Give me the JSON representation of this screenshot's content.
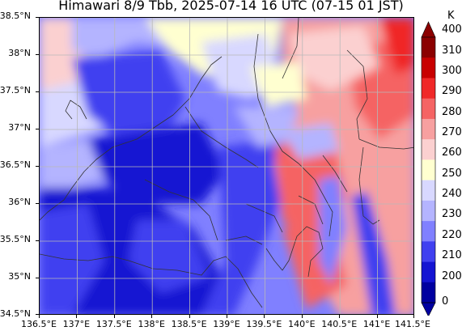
{
  "title": "Himawari 8/9 Tbb, 2025-07-14 16 UTC (07-15 01 JST)",
  "map": {
    "lon_range": [
      136.5,
      141.5
    ],
    "lat_range": [
      34.5,
      38.5
    ],
    "lat_labels": [
      "38.5°N",
      "38°N",
      "37.5°N",
      "37°N",
      "36.5°N",
      "36°N",
      "35.5°N",
      "35°N",
      "34.5°N"
    ],
    "lon_labels": [
      "136.5°E",
      "137°E",
      "137.5°E",
      "138°E",
      "138.5°E",
      "139°E",
      "139.5°E",
      "140°E",
      "140.5°E",
      "141°E",
      "141.5°E"
    ],
    "grid": true
  },
  "colorbar": {
    "unit": "K",
    "levels": [
      "400",
      "310",
      "300",
      "290",
      "280",
      "270",
      "260",
      "250",
      "240",
      "230",
      "220",
      "210",
      "200",
      "0"
    ],
    "colors": [
      "#8b0000",
      "#c80000",
      "#f02828",
      "#f56464",
      "#f7a0a0",
      "#fbd0d0",
      "#ffffd0",
      "#d8d8ff",
      "#b4b4ff",
      "#8080ff",
      "#4040f0",
      "#1414d2",
      "#0000a0"
    ],
    "extend_colors": {
      "top": "#8b0000",
      "bottom": "#0000a0"
    }
  }
}
